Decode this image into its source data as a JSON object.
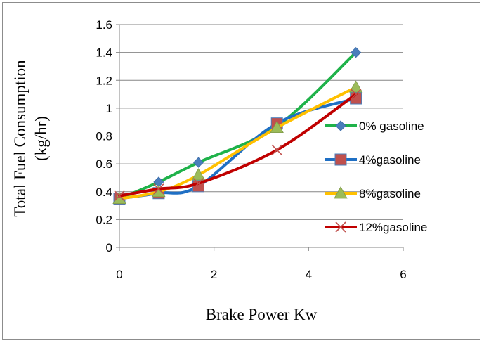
{
  "chart_data": {
    "type": "line",
    "xlabel": "Brake Power Kw",
    "ylabel_lines": [
      "Total Fuel Consumption",
      "(kg/hr)"
    ],
    "xlim": [
      0,
      6
    ],
    "ylim": [
      0,
      1.6
    ],
    "xticks": [
      "0",
      "2",
      "4",
      "6"
    ],
    "yticks": [
      "0",
      "0.2",
      "0.4",
      "0.6",
      "0.8",
      "1",
      "1.2",
      "1.4",
      "1.6"
    ],
    "grid": "horizontal",
    "legend_position": "right",
    "series": [
      {
        "name": "0% gasoline",
        "color": "#1fb24a",
        "marker": "diamond",
        "marker_color": "#4a7ebb",
        "x": [
          0,
          0.83,
          1.67,
          3.33,
          5.0
        ],
        "y": [
          0.35,
          0.47,
          0.61,
          0.87,
          1.4
        ]
      },
      {
        "name": "4%gasoline",
        "color": "#1f6fc4",
        "marker": "square",
        "marker_color": "#c0504d",
        "x": [
          0,
          0.83,
          1.67,
          3.33,
          5.0
        ],
        "y": [
          0.35,
          0.39,
          0.44,
          0.89,
          1.07
        ]
      },
      {
        "name": "8%gasoline",
        "color": "#ffc000",
        "marker": "triangle",
        "marker_color": "#9bbb59",
        "x": [
          0,
          0.83,
          1.67,
          3.33,
          5.0
        ],
        "y": [
          0.35,
          0.4,
          0.52,
          0.86,
          1.15
        ]
      },
      {
        "name": "12%gasoline",
        "color": "#c00000",
        "marker": "x",
        "marker_color": "#c0504d",
        "x": [
          0,
          0.83,
          1.67,
          3.33,
          5.0
        ],
        "y": [
          0.37,
          0.42,
          0.46,
          0.7,
          1.1
        ]
      }
    ]
  }
}
